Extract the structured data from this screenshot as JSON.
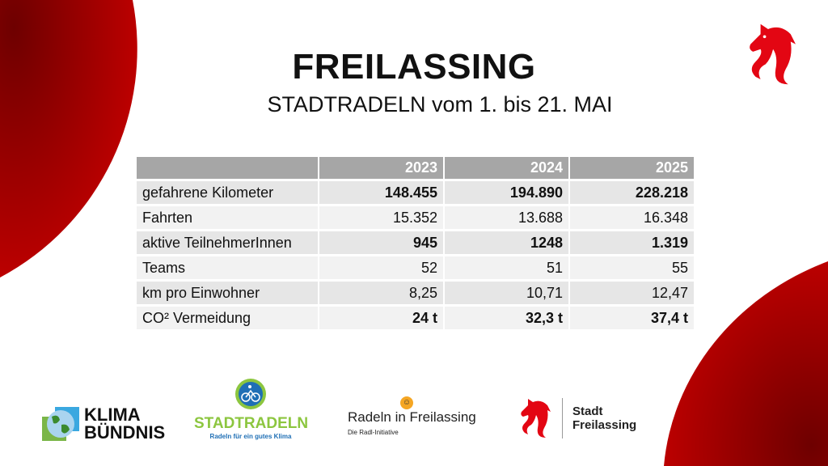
{
  "header": {
    "title": "FREILASSING",
    "subtitle": "STADTRADELN vom 1. bis 21. MAI"
  },
  "table": {
    "columns": [
      "",
      "2023",
      "2024",
      "2025"
    ],
    "rows": [
      {
        "label": "gefahrene Kilometer",
        "values": [
          "148.455",
          "194.890",
          "228.218"
        ],
        "bold": true
      },
      {
        "label": "Fahrten",
        "values": [
          "15.352",
          "13.688",
          "16.348"
        ],
        "bold": false
      },
      {
        "label": "aktive TeilnehmerInnen",
        "values": [
          "945",
          "1248",
          "1.319"
        ],
        "bold": true
      },
      {
        "label": "Teams",
        "values": [
          "52",
          "51",
          "55"
        ],
        "bold": false
      },
      {
        "label": "km pro Einwohner",
        "values": [
          "8,25",
          "10,71",
          "12,47"
        ],
        "bold": false
      },
      {
        "label": "CO² Vermeidung",
        "values": [
          "24 t",
          "32,3 t",
          "37,4 t"
        ],
        "bold": true
      }
    ]
  },
  "logos": {
    "klima": {
      "line1": "KLIMA",
      "line2": "BÜNDNIS"
    },
    "stadtradeln": {
      "name": "STADTRADELN",
      "tagline": "Radeln für ein gutes Klima"
    },
    "radeln": {
      "name": "Radeln in Freilassing",
      "tagline": "Die Radl-Initiative"
    },
    "stadt": {
      "line1": "Stadt",
      "line2": "Freilassing"
    }
  },
  "colors": {
    "accent": "#c00000",
    "header_bg": "#a6a6a6",
    "horse": "#e30613"
  }
}
